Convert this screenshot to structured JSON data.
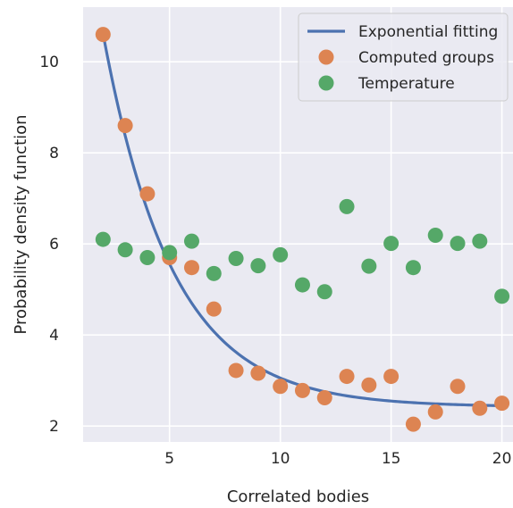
{
  "colors": {
    "background_panel": "#eaeaf2",
    "grid": "#ffffff",
    "line": "#4c72b0",
    "computed": "#dd8452",
    "temperature": "#55a868"
  },
  "chart_data": {
    "type": "scatter",
    "title": "",
    "xlabel": "Correlated bodies",
    "ylabel": "Probability density function",
    "xlim": [
      1.1,
      20.5
    ],
    "ylim": [
      1.65,
      11.2
    ],
    "xticks": [
      5,
      10,
      15,
      20
    ],
    "yticks": [
      2,
      4,
      6,
      8,
      10
    ],
    "grid": true,
    "legend_position": "top-right",
    "series": [
      {
        "name": "Exponential fitting",
        "kind": "line",
        "color": "#4c72b0",
        "model": {
          "form": "a*exp(-b*(x-x0))+c",
          "a": 8.2,
          "b": 0.32,
          "x0": 2,
          "c": 2.42,
          "x_range": [
            2,
            20
          ]
        }
      },
      {
        "name": "Computed groups",
        "kind": "scatter",
        "color": "#dd8452",
        "x": [
          2,
          3,
          4,
          5,
          6,
          7,
          8,
          9,
          10,
          11,
          12,
          13,
          14,
          15,
          16,
          17,
          18,
          19,
          20
        ],
        "y": [
          10.6,
          8.6,
          7.1,
          5.7,
          5.48,
          4.57,
          3.22,
          3.16,
          2.87,
          2.78,
          2.62,
          3.09,
          2.9,
          3.09,
          2.04,
          2.31,
          2.87,
          2.39,
          2.5
        ]
      },
      {
        "name": "Temperature",
        "kind": "scatter",
        "color": "#55a868",
        "x": [
          2,
          3,
          4,
          5,
          6,
          7,
          8,
          9,
          10,
          11,
          12,
          13,
          14,
          15,
          16,
          17,
          18,
          19,
          20
        ],
        "y": [
          6.1,
          5.87,
          5.7,
          5.81,
          6.06,
          5.35,
          5.68,
          5.52,
          5.76,
          5.1,
          4.95,
          6.82,
          5.51,
          6.01,
          5.48,
          6.19,
          6.01,
          6.06,
          4.85
        ]
      }
    ]
  }
}
